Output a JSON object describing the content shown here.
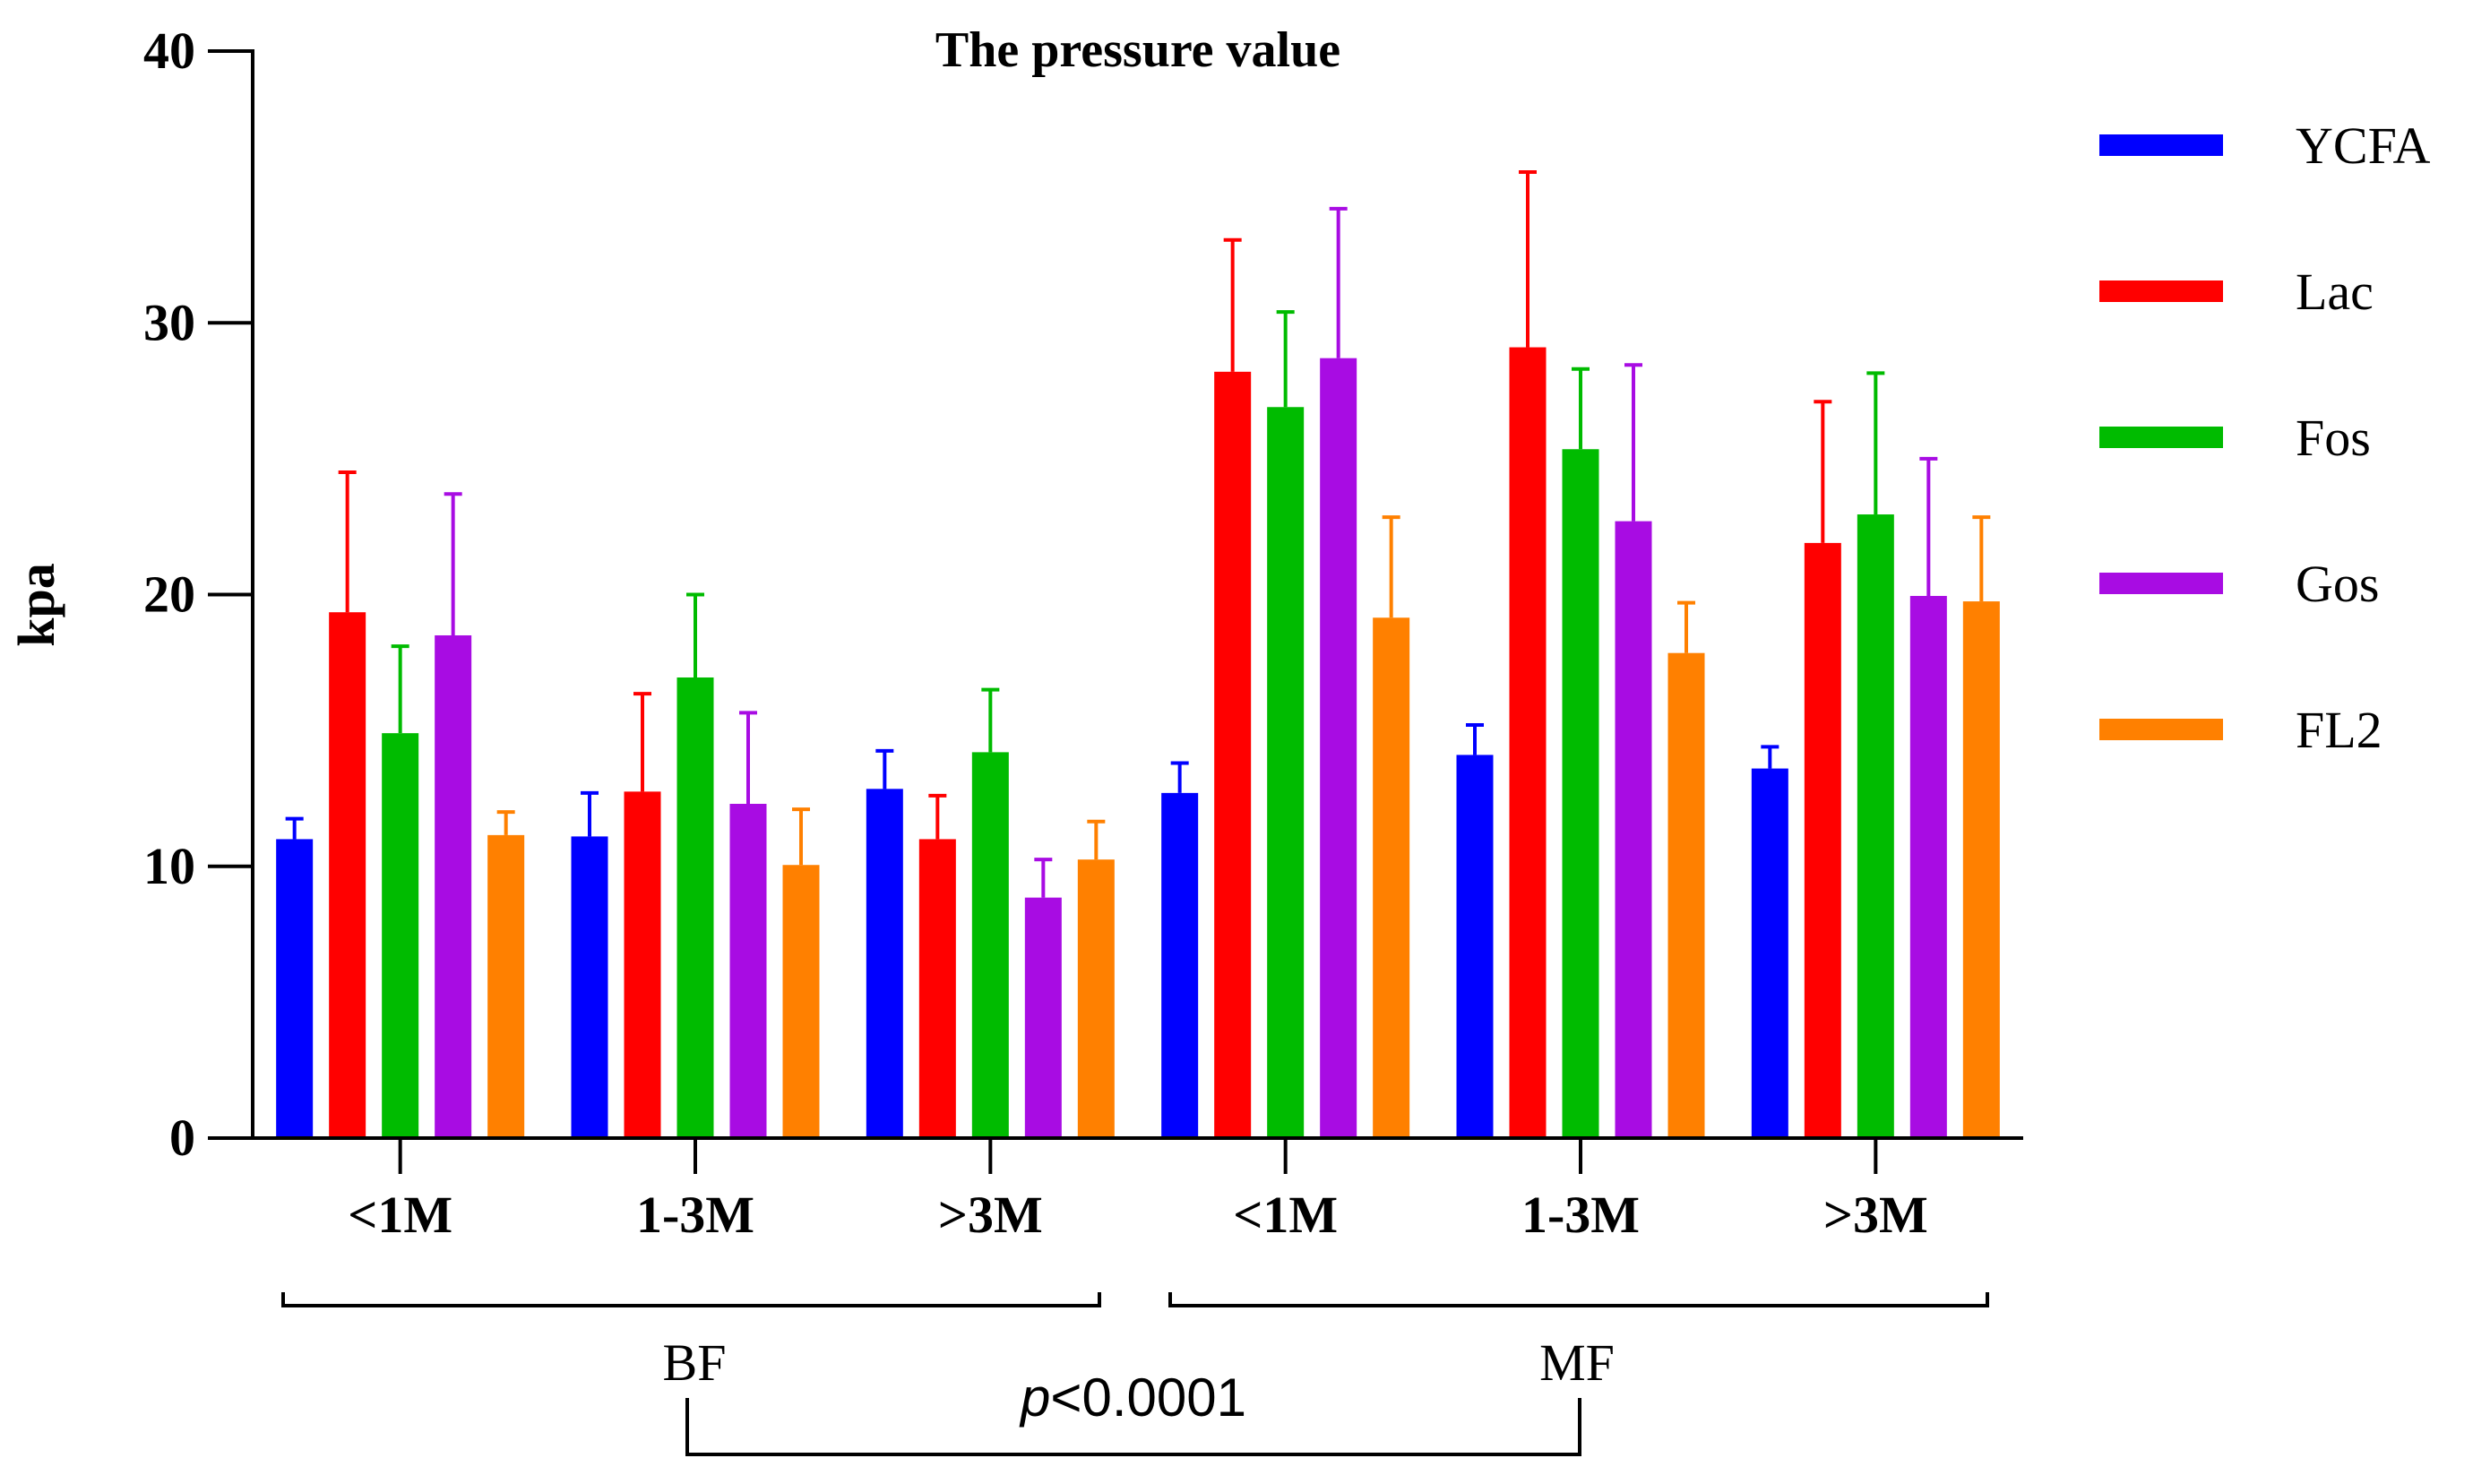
{
  "chart_data": {
    "type": "bar",
    "title": "The pressure value",
    "ylabel": "kpa",
    "xlabel": "",
    "ylim": [
      0,
      40
    ],
    "yticks": [
      0,
      10,
      20,
      30,
      40
    ],
    "categories": [
      "<1M",
      "1-3M",
      ">3M",
      "<1M",
      "1-3M",
      ">3M"
    ],
    "groups": [
      {
        "label": "BF",
        "categories": [
          0,
          1,
          2
        ]
      },
      {
        "label": "MF",
        "categories": [
          3,
          4,
          5
        ]
      }
    ],
    "significance": {
      "prefix": "p",
      "text": "<0.0001",
      "between": [
        "BF",
        "MF"
      ]
    },
    "legend_position": "right",
    "series": [
      {
        "name": "YCFA",
        "color": "#0000ff",
        "values": [
          11.0,
          11.1,
          12.85,
          12.7,
          14.1,
          13.6
        ],
        "errors": [
          0.75,
          1.6,
          1.4,
          1.1,
          1.1,
          0.8
        ]
      },
      {
        "name": "Lac",
        "color": "#ff0000",
        "values": [
          19.35,
          12.75,
          11.0,
          28.2,
          29.1,
          21.9
        ],
        "errors": [
          5.15,
          3.6,
          1.6,
          4.85,
          6.45,
          5.2
        ]
      },
      {
        "name": "Fos",
        "color": "#00bb00",
        "values": [
          14.9,
          16.95,
          14.2,
          26.9,
          25.35,
          22.95
        ],
        "errors": [
          3.2,
          3.05,
          2.3,
          3.5,
          2.95,
          5.2
        ]
      },
      {
        "name": "Gos",
        "color": "#a80ce3",
        "values": [
          18.5,
          12.3,
          8.85,
          28.7,
          22.7,
          19.95
        ],
        "errors": [
          5.2,
          3.35,
          1.4,
          5.5,
          5.75,
          5.05
        ]
      },
      {
        "name": "FL2",
        "color": "#ff8000",
        "values": [
          11.15,
          10.05,
          10.25,
          19.15,
          17.85,
          19.75
        ],
        "errors": [
          0.85,
          2.05,
          1.4,
          3.7,
          1.85,
          3.1
        ]
      }
    ]
  }
}
